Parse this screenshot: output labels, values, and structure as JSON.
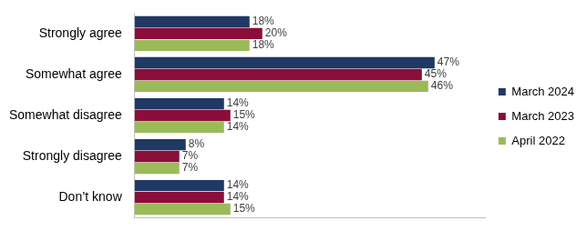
{
  "chart_data": {
    "type": "bar",
    "orientation": "horizontal",
    "categories": [
      "Strongly agree",
      "Somewhat agree",
      "Somewhat disagree",
      "Strongly disagree",
      "Don’t know"
    ],
    "series": [
      {
        "name": "March 2024",
        "color": "#203864",
        "values": [
          18,
          47,
          14,
          8,
          14
        ],
        "value_labels": [
          "18%",
          "47%",
          "14%",
          "8%",
          "14%"
        ]
      },
      {
        "name": "March 2023",
        "color": "#8b0e3a",
        "values": [
          20,
          45,
          15,
          7,
          14
        ],
        "value_labels": [
          "20%",
          "45%",
          "15%",
          "7%",
          "14%"
        ]
      },
      {
        "name": "April 2022",
        "color": "#9bbb59",
        "values": [
          18,
          46,
          14,
          7,
          15
        ],
        "value_labels": [
          "18%",
          "46%",
          "14%",
          "7%",
          "15%"
        ]
      }
    ],
    "xlim": [
      0,
      55
    ],
    "grid": false,
    "legend": "right",
    "data_labels": true,
    "tick_labels": "y"
  }
}
